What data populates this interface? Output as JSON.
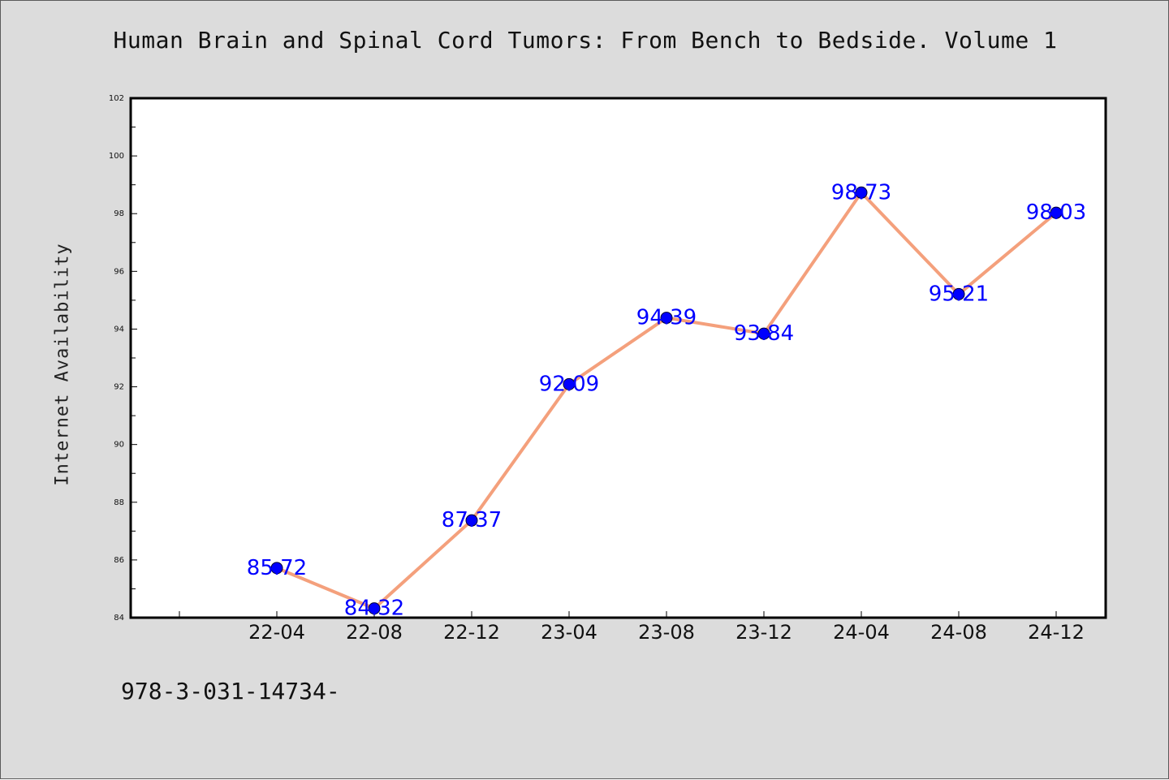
{
  "chart_data": {
    "type": "line",
    "title": "Human Brain and Spinal Cord Tumors: From Bench to Bedside. Volume 1",
    "xlabel": "",
    "ylabel": "Internet Availability",
    "categories": [
      "22-04",
      "22-08",
      "22-12",
      "23-04",
      "23-08",
      "23-12",
      "24-04",
      "24-08",
      "24-12"
    ],
    "series": [
      {
        "values": [
          85.72,
          84.32,
          87.37,
          92.09,
          94.39,
          93.84,
          98.73,
          95.21,
          98.03
        ],
        "data_labels": [
          "85.72",
          "84.32",
          "87.37",
          "92.09",
          "94.39",
          "93.84",
          "98.73",
          "95.21",
          "98.03"
        ],
        "line_color": "#f4a07c",
        "marker_color": "#0000ff"
      }
    ],
    "ylim": [
      84,
      102
    ],
    "yticks": [
      "84",
      "86",
      "88",
      "90",
      "92",
      "94",
      "96",
      "98",
      "100",
      "102"
    ],
    "grid": false,
    "legend": "none"
  },
  "footnote": "978-3-031-14734-",
  "colors": {
    "background": "#dcdcdc",
    "plot_area": "#ffffff",
    "data_label": "#0000ff"
  }
}
